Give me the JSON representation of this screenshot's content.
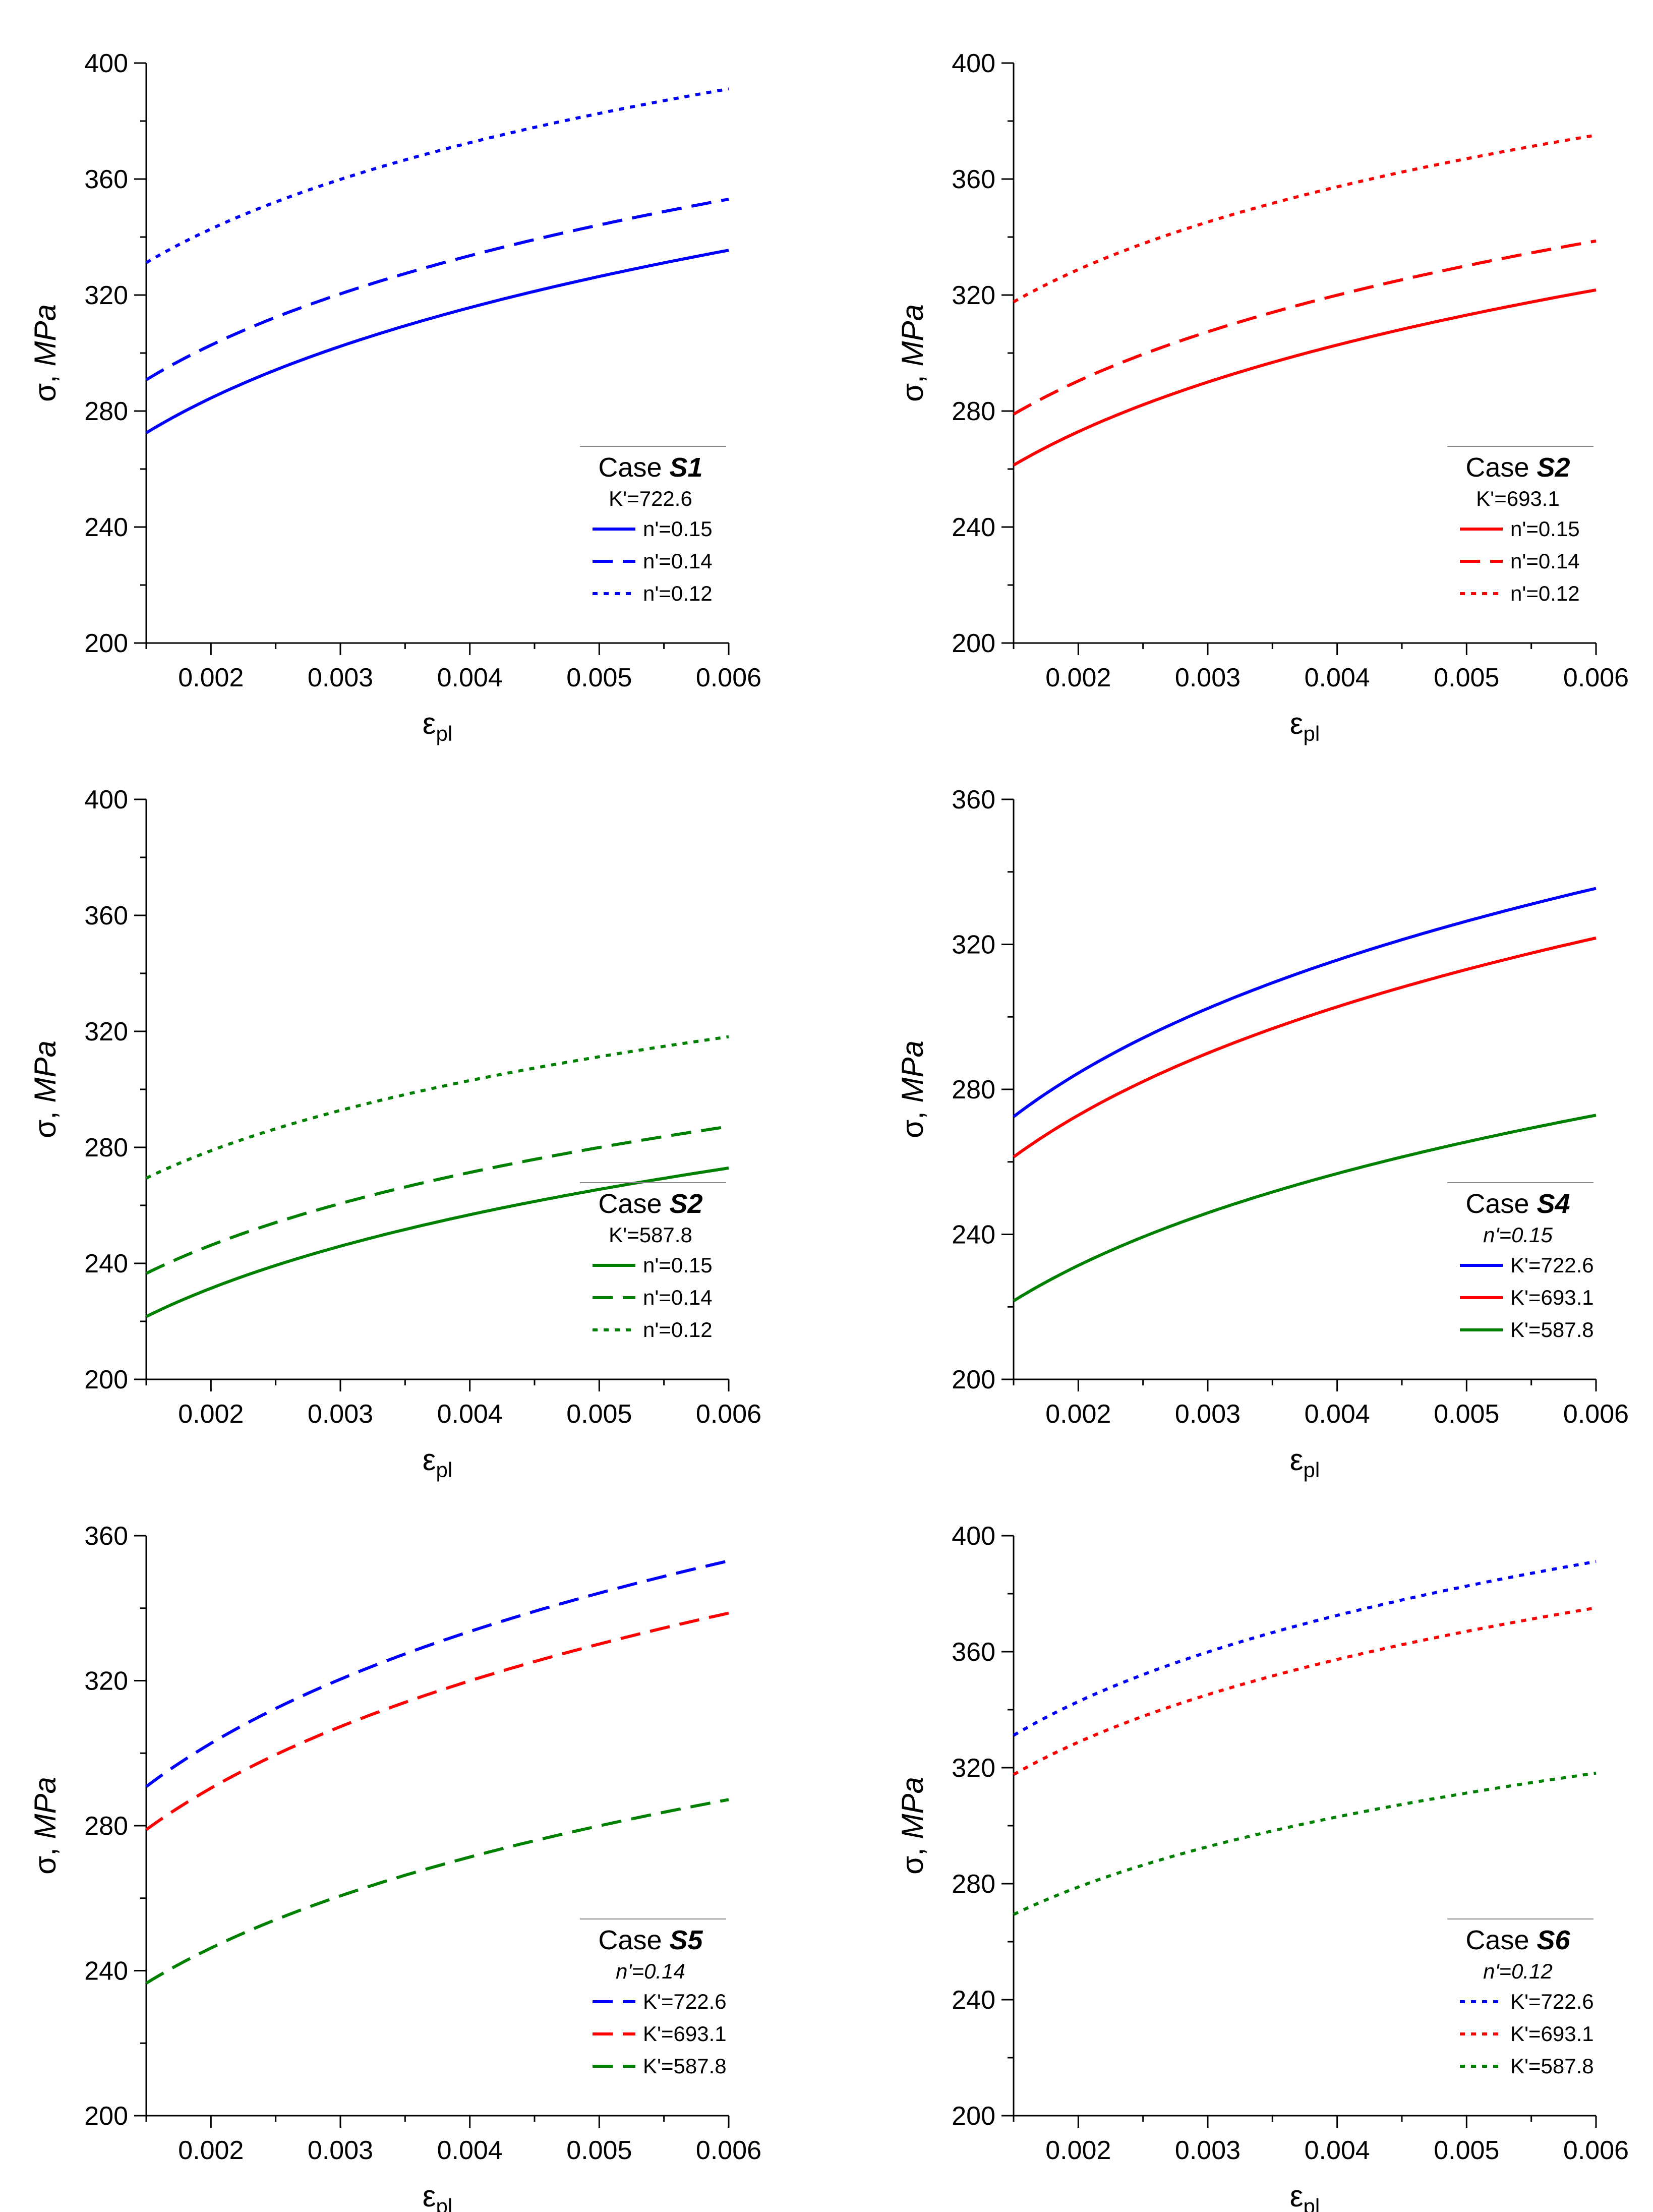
{
  "charts": [
    {
      "type": "line",
      "title": "Case S1",
      "case_prefix": "Case",
      "case_label": "S1",
      "legend_param": "K'=722.6",
      "legend_position": "bottom-right",
      "xlabel_main": "ε",
      "xlabel_sub": "pl",
      "ylabel_main": "σ, ",
      "ylabel_unit": "MPa",
      "xlim": [
        0.0015,
        0.006
      ],
      "ylim": [
        200,
        400
      ],
      "xticks": [
        0.002,
        0.003,
        0.004,
        0.005,
        0.006
      ],
      "xtick_labels": [
        "0.002",
        "0.003",
        "0.004",
        "0.005",
        "0.006"
      ],
      "yticks": [
        200,
        240,
        280,
        320,
        360,
        400
      ],
      "ytick_labels": [
        "200",
        "240",
        "280",
        "320",
        "360",
        "400"
      ],
      "series": [
        {
          "name": "n'=0.15",
          "K": 722.6,
          "n": 0.15,
          "color": "#0000ff",
          "dash": "solid",
          "x": [
            0.0015,
            0.006
          ],
          "y_range": [
            272,
            336
          ]
        },
        {
          "name": "n'=0.14",
          "K": 722.6,
          "n": 0.14,
          "color": "#0000ff",
          "dash": "dash",
          "x": [
            0.0015,
            0.006
          ],
          "y_range": [
            291,
            353
          ]
        },
        {
          "name": "n'=0.12",
          "K": 722.6,
          "n": 0.12,
          "color": "#0000ff",
          "dash": "dot",
          "x": [
            0.0015,
            0.006
          ],
          "y_range": [
            331,
            391
          ]
        }
      ]
    },
    {
      "type": "line",
      "title": "Case S2",
      "case_prefix": "Case",
      "case_label": "S2",
      "legend_param": "K'=693.1",
      "legend_position": "bottom-right",
      "xlabel_main": "ε",
      "xlabel_sub": "pl",
      "ylabel_main": "σ, ",
      "ylabel_unit": "MPa",
      "xlim": [
        0.0015,
        0.006
      ],
      "ylim": [
        200,
        400
      ],
      "xticks": [
        0.002,
        0.003,
        0.004,
        0.005,
        0.006
      ],
      "xtick_labels": [
        "0.002",
        "0.003",
        "0.004",
        "0.005",
        "0.006"
      ],
      "yticks": [
        200,
        240,
        280,
        320,
        360,
        400
      ],
      "ytick_labels": [
        "200",
        "240",
        "280",
        "320",
        "360",
        "400"
      ],
      "series": [
        {
          "name": "n'=0.15",
          "K": 693.1,
          "n": 0.15,
          "color": "#ff0000",
          "dash": "solid",
          "x": [
            0.0015,
            0.006
          ],
          "y_range": [
            262,
            322
          ]
        },
        {
          "name": "n'=0.14",
          "K": 693.1,
          "n": 0.14,
          "color": "#ff0000",
          "dash": "dash",
          "x": [
            0.0015,
            0.006
          ],
          "y_range": [
            280,
            339
          ]
        },
        {
          "name": "n'=0.12",
          "K": 693.1,
          "n": 0.12,
          "color": "#ff0000",
          "dash": "dot",
          "x": [
            0.0015,
            0.006
          ],
          "y_range": [
            319,
            375
          ]
        }
      ]
    },
    {
      "type": "line",
      "title": "Case S2",
      "case_prefix": "Case",
      "case_label": "S2",
      "legend_param": "K'=587.8",
      "legend_position": "bottom-right",
      "xlabel_main": "ε",
      "xlabel_sub": "pl",
      "ylabel_main": "σ, ",
      "ylabel_unit": "MPa",
      "xlim": [
        0.0015,
        0.006
      ],
      "ylim": [
        200,
        400
      ],
      "xticks": [
        0.002,
        0.003,
        0.004,
        0.005,
        0.006
      ],
      "xtick_labels": [
        "0.002",
        "0.003",
        "0.004",
        "0.005",
        "0.006"
      ],
      "yticks": [
        200,
        240,
        280,
        320,
        360,
        400
      ],
      "ytick_labels": [
        "200",
        "240",
        "280",
        "320",
        "360",
        "400"
      ],
      "series": [
        {
          "name": "n'=0.15",
          "K": 587.8,
          "n": 0.15,
          "color": "#008000",
          "dash": "solid",
          "x": [
            0.0015,
            0.006
          ],
          "y_range": [
            222,
            273
          ]
        },
        {
          "name": "n'=0.14",
          "K": 587.8,
          "n": 0.14,
          "color": "#008000",
          "dash": "dash",
          "x": [
            0.0015,
            0.006
          ],
          "y_range": [
            237,
            287
          ]
        },
        {
          "name": "n'=0.12",
          "K": 587.8,
          "n": 0.12,
          "color": "#008000",
          "dash": "dot",
          "x": [
            0.0015,
            0.006
          ],
          "y_range": [
            270,
            318
          ]
        }
      ]
    },
    {
      "type": "line",
      "title": "Case S4",
      "case_prefix": "Case",
      "case_label": "S4",
      "legend_param": "n'=0.15",
      "legend_position": "bottom-right",
      "xlabel_main": "ε",
      "xlabel_sub": "pl",
      "ylabel_main": "σ, ",
      "ylabel_unit": "MPa",
      "xlim": [
        0.0015,
        0.006
      ],
      "ylim": [
        200,
        360
      ],
      "xticks": [
        0.002,
        0.003,
        0.004,
        0.005,
        0.006
      ],
      "xtick_labels": [
        "0.002",
        "0.003",
        "0.004",
        "0.005",
        "0.006"
      ],
      "yticks": [
        200,
        240,
        280,
        320,
        360
      ],
      "ytick_labels": [
        "200",
        "240",
        "280",
        "320",
        "360"
      ],
      "series": [
        {
          "name": "K'=722.6",
          "K": 722.6,
          "n": 0.15,
          "color": "#0000ff",
          "dash": "solid",
          "x": [
            0.0015,
            0.006
          ],
          "y_range": [
            272,
            336
          ]
        },
        {
          "name": "K'=693.1",
          "K": 693.1,
          "n": 0.15,
          "color": "#ff0000",
          "dash": "solid",
          "x": [
            0.0015,
            0.006
          ],
          "y_range": [
            262,
            322
          ]
        },
        {
          "name": "K'=587.8",
          "K": 587.8,
          "n": 0.15,
          "color": "#008000",
          "dash": "solid",
          "x": [
            0.0015,
            0.006
          ],
          "y_range": [
            222,
            273
          ]
        }
      ]
    },
    {
      "type": "line",
      "title": "Case S5",
      "case_prefix": "Case",
      "case_label": "S5",
      "legend_param": "n'=0.14",
      "legend_position": "bottom-right",
      "xlabel_main": "ε",
      "xlabel_sub": "pl",
      "ylabel_main": "σ, ",
      "ylabel_unit": "MPa",
      "xlim": [
        0.0015,
        0.006
      ],
      "ylim": [
        200,
        360
      ],
      "xticks": [
        0.002,
        0.003,
        0.004,
        0.005,
        0.006
      ],
      "xtick_labels": [
        "0.002",
        "0.003",
        "0.004",
        "0.005",
        "0.006"
      ],
      "yticks": [
        200,
        240,
        280,
        320,
        360
      ],
      "ytick_labels": [
        "200",
        "240",
        "280",
        "320",
        "360"
      ],
      "series": [
        {
          "name": "K'=722.6",
          "K": 722.6,
          "n": 0.14,
          "color": "#0000ff",
          "dash": "dash",
          "x": [
            0.0015,
            0.006
          ],
          "y_range": [
            291,
            353
          ]
        },
        {
          "name": "K'=693.1",
          "K": 693.1,
          "n": 0.14,
          "color": "#ff0000",
          "dash": "dash",
          "x": [
            0.0015,
            0.006
          ],
          "y_range": [
            280,
            339
          ]
        },
        {
          "name": "K'=587.8",
          "K": 587.8,
          "n": 0.14,
          "color": "#008000",
          "dash": "dash",
          "x": [
            0.0015,
            0.006
          ],
          "y_range": [
            237,
            287
          ]
        }
      ]
    },
    {
      "type": "line",
      "title": "Case S6",
      "case_prefix": "Case",
      "case_label": "S6",
      "legend_param": "n'=0.12",
      "legend_position": "bottom-right",
      "xlabel_main": "ε",
      "xlabel_sub": "pl",
      "ylabel_main": "σ, ",
      "ylabel_unit": "MPa",
      "xlim": [
        0.0015,
        0.006
      ],
      "ylim": [
        200,
        400
      ],
      "xticks": [
        0.002,
        0.003,
        0.004,
        0.005,
        0.006
      ],
      "xtick_labels": [
        "0.002",
        "0.003",
        "0.004",
        "0.005",
        "0.006"
      ],
      "yticks": [
        200,
        240,
        280,
        320,
        360,
        400
      ],
      "ytick_labels": [
        "200",
        "240",
        "280",
        "320",
        "360",
        "400"
      ],
      "series": [
        {
          "name": "K'=722.6",
          "K": 722.6,
          "n": 0.12,
          "color": "#0000ff",
          "dash": "dot",
          "x": [
            0.0015,
            0.006
          ],
          "y_range": [
            331,
            391
          ]
        },
        {
          "name": "K'=693.1",
          "K": 693.1,
          "n": 0.12,
          "color": "#ff0000",
          "dash": "dot",
          "x": [
            0.0015,
            0.006
          ],
          "y_range": [
            319,
            375
          ]
        },
        {
          "name": "K'=587.8",
          "K": 587.8,
          "n": 0.12,
          "color": "#008000",
          "dash": "dot",
          "x": [
            0.0015,
            0.006
          ],
          "y_range": [
            270,
            318
          ]
        }
      ]
    }
  ]
}
